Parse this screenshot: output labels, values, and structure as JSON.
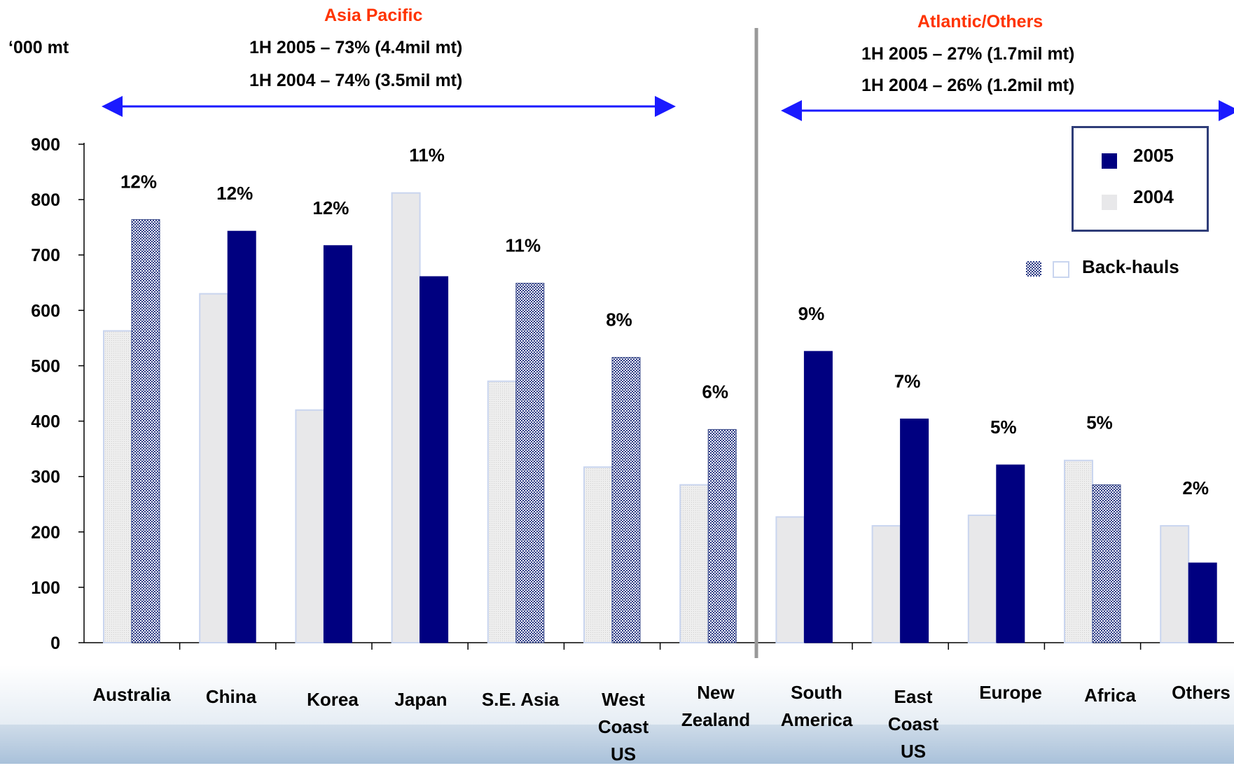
{
  "colors": {
    "y2005": "#000080",
    "y2004": "#e8e8ea",
    "y2004_edge": "#c9d5ef",
    "backhaul": "#3a4a8a",
    "arrow": "#1a1aff",
    "region_title": "#ff3300",
    "divider": "#999999"
  },
  "unit_label": "‘000 mt",
  "regions": [
    {
      "title": "Asia Pacific",
      "line1": "1H 2005 – 73% (4.4mil mt)",
      "line2": "1H 2004 – 74% (3.5mil mt)"
    },
    {
      "title": "Atlantic/Others",
      "line1": "1H 2005 – 27% (1.7mil mt)",
      "line2": "1H 2004 – 26% (1.2mil mt)"
    }
  ],
  "legend": {
    "items": [
      {
        "label": "2005",
        "icon": "navy-square"
      },
      {
        "label": "2004",
        "icon": "light-grey-square"
      }
    ],
    "backhaul_label": "Back-hauls",
    "backhaul_icons": [
      "checkered-square-icon",
      "outline-square-icon"
    ]
  },
  "chart_data": {
    "type": "bar",
    "ylim": [
      0,
      900
    ],
    "yticks": [
      "0",
      "100",
      "200",
      "300",
      "400",
      "500",
      "600",
      "700",
      "800",
      "900"
    ],
    "categories": [
      "Australia",
      "China",
      "Korea",
      "Japan",
      "S.E. Asia",
      "West\nCoast\nUS",
      "New\nZealand",
      "South\nAmerica",
      "East\nCoast\nUS",
      "Europe",
      "Africa",
      "Others"
    ],
    "series": [
      {
        "name": "2004",
        "values": [
          563,
          630,
          420,
          812,
          472,
          317,
          285,
          227,
          211,
          230,
          329,
          211
        ]
      },
      {
        "name": "2005",
        "values": [
          764,
          743,
          717,
          661,
          649,
          515,
          385,
          526,
          404,
          321,
          285,
          144
        ]
      }
    ],
    "backhaul_2004": [
      true,
      false,
      false,
      false,
      true,
      true,
      true,
      false,
      false,
      false,
      true,
      false
    ],
    "backhaul_2005": [
      true,
      false,
      false,
      false,
      true,
      true,
      true,
      false,
      false,
      false,
      true,
      false
    ],
    "share_labels": [
      "12%",
      "12%",
      "12%",
      "11%",
      "11%",
      "8%",
      "6%",
      "9%",
      "7%",
      "5%",
      "5%",
      "2%"
    ],
    "legend_placement": "top-right"
  }
}
